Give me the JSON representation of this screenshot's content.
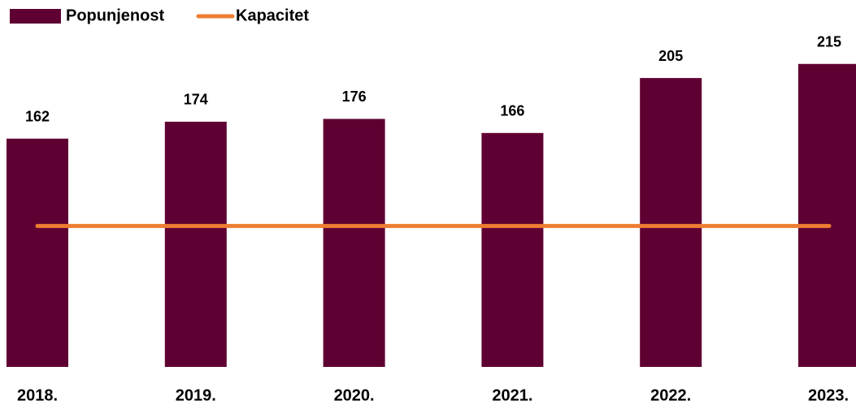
{
  "chart_data": {
    "type": "bar",
    "categories": [
      "2018.",
      "2019.",
      "2020.",
      "2021.",
      "2022.",
      "2023."
    ],
    "series": [
      {
        "name": "Popunjenost",
        "type": "bar",
        "color": "#5f0032",
        "values": [
          162,
          174,
          176,
          166,
          205,
          215
        ]
      },
      {
        "name": "Kapacitet",
        "type": "line",
        "color": "#ed7d31",
        "values": [
          100,
          100,
          100,
          100,
          100,
          100
        ]
      }
    ],
    "ylim": [
      0,
      250
    ],
    "legend": "top-left",
    "grid": false
  }
}
